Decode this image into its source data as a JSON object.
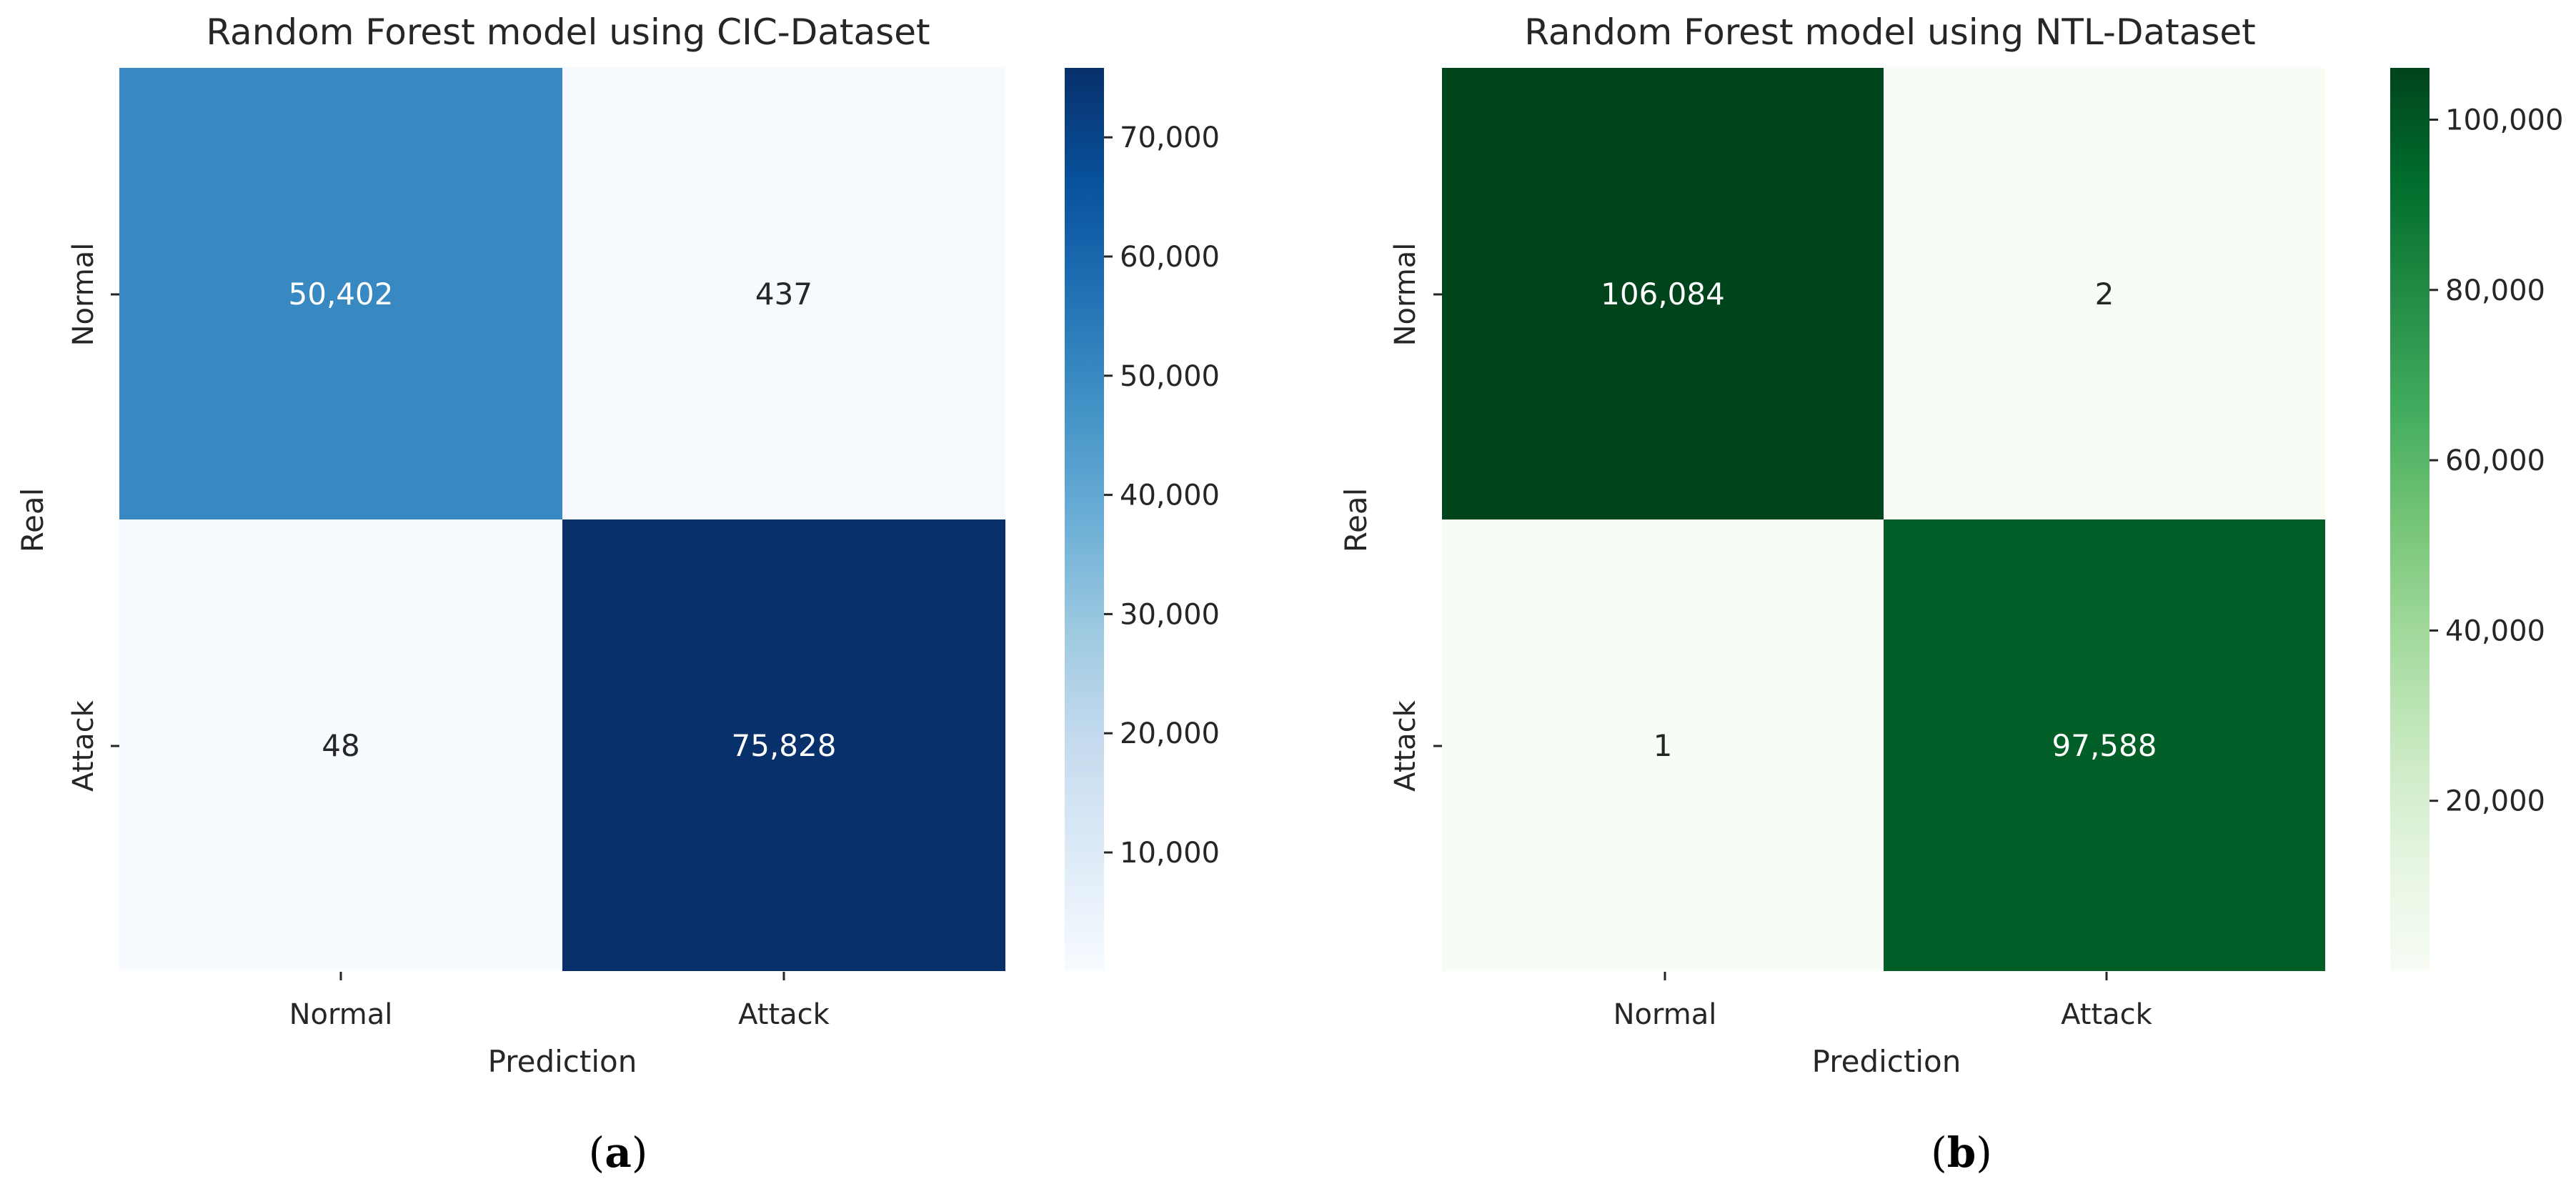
{
  "chart_data": [
    {
      "type": "heatmap",
      "panel_label_parts": [
        "(",
        "a",
        ")"
      ],
      "title": "Random Forest model using CIC-Dataset",
      "xlabel": "Prediction",
      "ylabel": "Real",
      "x_categories": [
        "Normal",
        "Attack"
      ],
      "y_categories": [
        "Normal",
        "Attack"
      ],
      "cell_labels": [
        [
          "50,402",
          "437"
        ],
        [
          "48",
          "75,828"
        ]
      ],
      "values": [
        [
          50402,
          437
        ],
        [
          48,
          75828
        ]
      ],
      "colormap": "Blues",
      "colorbar": {
        "range": [
          48,
          75828
        ],
        "ticks": [
          10000,
          20000,
          30000,
          40000,
          50000,
          60000,
          70000
        ],
        "tick_labels": [
          "10,000",
          "20,000",
          "30,000",
          "40,000",
          "50,000",
          "60,000",
          "70,000"
        ]
      }
    },
    {
      "type": "heatmap",
      "panel_label_parts": [
        "(",
        "b",
        ")"
      ],
      "title": "Random Forest model using NTL-Dataset",
      "xlabel": "Prediction",
      "ylabel": "Real",
      "x_categories": [
        "Normal",
        "Attack"
      ],
      "y_categories": [
        "Normal",
        "Attack"
      ],
      "cell_labels": [
        [
          "106,084",
          "2"
        ],
        [
          "1",
          "97,588"
        ]
      ],
      "values": [
        [
          106084,
          2
        ],
        [
          1,
          97588
        ]
      ],
      "colormap": "Greens",
      "colorbar": {
        "range": [
          1,
          106084
        ],
        "ticks": [
          20000,
          40000,
          60000,
          80000,
          100000
        ],
        "tick_labels": [
          "20,000",
          "40,000",
          "60,000",
          "80,000",
          "100,000"
        ]
      }
    }
  ]
}
